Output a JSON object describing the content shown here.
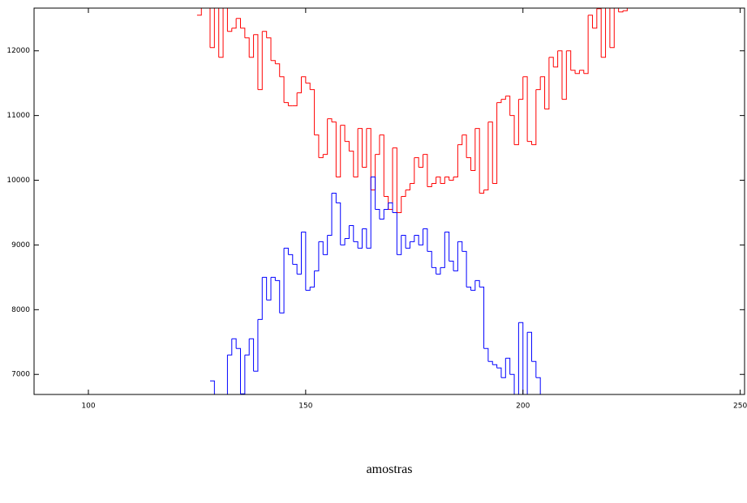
{
  "chart_data": {
    "type": "stairs",
    "x_label": "amostras",
    "x": [
      125,
      126,
      127,
      128,
      129,
      130,
      131,
      132,
      133,
      134,
      135,
      136,
      137,
      138,
      139,
      140,
      141,
      142,
      143,
      144,
      145,
      146,
      147,
      148,
      149,
      150,
      151,
      152,
      153,
      154,
      155,
      156,
      157,
      158,
      159,
      160,
      161,
      162,
      163,
      164,
      165,
      166,
      167,
      168,
      169,
      170,
      171,
      172,
      173,
      174,
      175,
      176,
      177,
      178,
      179,
      180,
      181,
      182,
      183,
      184,
      185,
      186,
      187,
      188,
      189,
      190,
      191,
      192,
      193,
      194,
      195,
      196,
      197,
      198,
      199,
      200,
      201,
      202,
      203,
      204,
      205,
      206,
      207,
      208,
      209,
      210,
      211,
      212,
      213,
      214,
      215,
      216,
      217,
      218,
      219,
      220,
      221,
      222,
      223,
      224
    ],
    "series": [
      {
        "color": "#ff0000",
        "values": [
          12550,
          12800,
          12800,
          12050,
          12700,
          11900,
          12700,
          12300,
          12350,
          12500,
          12350,
          12200,
          11900,
          12250,
          11400,
          12300,
          12200,
          11850,
          11800,
          11600,
          11200,
          11150,
          11150,
          11350,
          11600,
          11500,
          11400,
          10700,
          10350,
          10400,
          10950,
          10900,
          10050,
          10850,
          10600,
          10450,
          10050,
          10800,
          10200,
          10800,
          9850,
          10400,
          10700,
          9750,
          9550,
          10500,
          9500,
          9750,
          9850,
          9950,
          10350,
          10200,
          10400,
          9900,
          9950,
          10050,
          9950,
          10050,
          10000,
          10050,
          10550,
          10700,
          10350,
          10150,
          10800,
          9800,
          9850,
          10900,
          9950,
          11200,
          11250,
          11300,
          11000,
          10550,
          11250,
          11600,
          10600,
          10550,
          11400,
          11600,
          11100,
          11900,
          11750,
          12000,
          11250,
          12000,
          11700,
          11650,
          11700,
          11650,
          12550,
          12350,
          12650,
          11900,
          12800,
          12050,
          12800,
          12600,
          12620,
          12800
        ]
      },
      {
        "color": "#0000ff",
        "values": [
          null,
          null,
          null,
          6900,
          6500,
          6500,
          6500,
          7300,
          7550,
          7400,
          6700,
          7300,
          7550,
          7050,
          7850,
          8500,
          8150,
          8500,
          8450,
          7950,
          8950,
          8850,
          8700,
          8550,
          9200,
          8300,
          8350,
          8600,
          9050,
          8850,
          9150,
          9800,
          9650,
          9000,
          9100,
          9300,
          9050,
          8950,
          9250,
          8950,
          10050,
          9550,
          9400,
          9550,
          9650,
          9500,
          8850,
          9150,
          8950,
          9050,
          9150,
          9000,
          9250,
          8900,
          8650,
          8550,
          8650,
          9200,
          8750,
          8600,
          9050,
          8900,
          8350,
          8300,
          8450,
          8350,
          7400,
          7200,
          7150,
          7100,
          6950,
          7250,
          7000,
          6450,
          7800,
          6550,
          7650,
          7200,
          6950,
          6400,
          6550,
          6300,
          null,
          null,
          null,
          null,
          null,
          null,
          null,
          null,
          null,
          null,
          null,
          null,
          null,
          null,
          null,
          null,
          null,
          null
        ]
      }
    ],
    "xlim": [
      87.5,
      251
    ],
    "ylim": [
      6690,
      12660
    ],
    "xticks": [
      100,
      150,
      200,
      250
    ],
    "yticks": [
      7000,
      8000,
      9000,
      10000,
      11000,
      12000
    ]
  }
}
